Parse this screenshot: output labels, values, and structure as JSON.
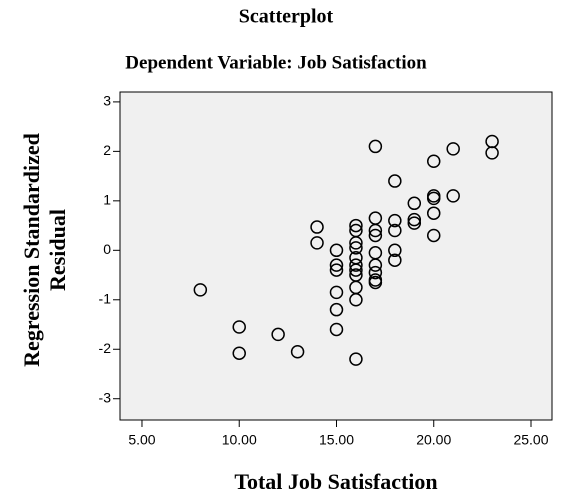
{
  "chart_data": {
    "type": "scatter",
    "title": "Scatterplot",
    "subtitle": "Dependent Variable: Job Satisfaction",
    "xlabel": "Total Job Satisfaction",
    "ylabel": [
      "Regression Standardized",
      "Residual"
    ],
    "x": [
      8,
      10,
      10,
      12,
      13,
      14,
      14,
      15,
      15,
      15,
      15,
      15,
      15,
      16,
      16,
      16,
      16,
      16,
      16,
      16,
      16,
      16,
      16,
      16,
      17,
      17,
      17,
      17,
      17,
      17,
      17,
      17,
      17,
      18,
      18,
      18,
      18,
      18,
      19,
      19,
      19,
      20,
      20,
      20,
      20,
      20,
      21,
      21,
      23,
      23
    ],
    "values": [
      -0.8,
      -1.55,
      -2.08,
      -1.7,
      -2.05,
      0.47,
      0.15,
      0.0,
      -0.3,
      -0.4,
      -0.85,
      -1.2,
      -1.6,
      0.5,
      0.4,
      0.15,
      0.05,
      -0.15,
      -0.3,
      -0.4,
      -0.5,
      -0.75,
      -1.0,
      -2.2,
      2.1,
      0.65,
      0.4,
      0.3,
      -0.05,
      -0.3,
      -0.45,
      -0.6,
      -0.65,
      1.4,
      0.6,
      0.4,
      0.0,
      -0.2,
      0.95,
      0.62,
      0.55,
      1.8,
      1.1,
      1.05,
      0.75,
      0.3,
      2.05,
      1.1,
      2.2,
      1.97
    ],
    "color": "#000000",
    "background": "#f0f0f0",
    "xlim": [
      3.87,
      26.08
    ],
    "ylim": [
      -3.43,
      3.2
    ],
    "xticks": [
      {
        "value": 5,
        "label": "5.00"
      },
      {
        "value": 10,
        "label": "10.00"
      },
      {
        "value": 15,
        "label": "15.00"
      },
      {
        "value": 20,
        "label": "20.00"
      },
      {
        "value": 25,
        "label": "25.00"
      }
    ],
    "yticks": [
      -3,
      -2,
      -1,
      0,
      1,
      2,
      3
    ],
    "grid": false
  }
}
